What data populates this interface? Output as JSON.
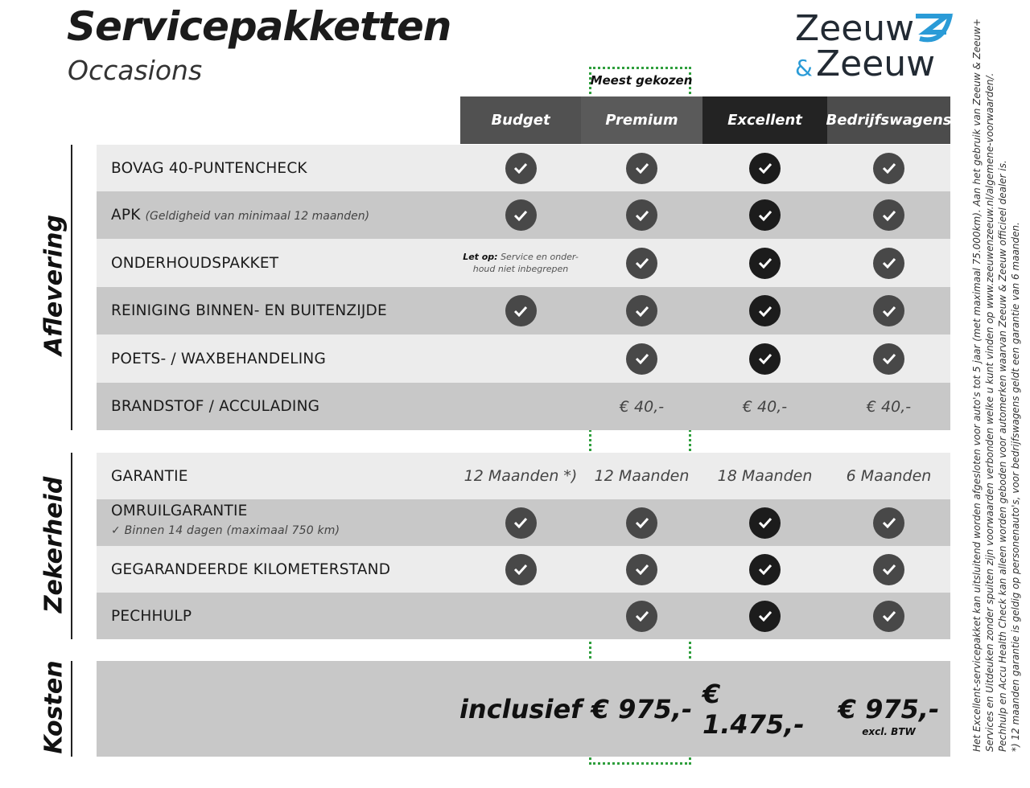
{
  "title": "Servicepakketten",
  "subtitle": "Occasions",
  "logo": {
    "text": "Zeeuw & Zeeuw",
    "brand_color": "#2a9bd7",
    "text_color": "#222a33"
  },
  "most_chosen": "Meest gekozen",
  "highlight_color": "#2e9e3c",
  "columns": [
    {
      "label": "Budget",
      "bg": "#515151"
    },
    {
      "label": "Premium",
      "bg": "#5a5a5a"
    },
    {
      "label": "Excellent",
      "bg": "#232323"
    },
    {
      "label": "Bedrijfswagens",
      "bg": "#4c4c4c"
    }
  ],
  "sections": {
    "aflevering": "Aflevering",
    "zekerheid": "Zekerheid",
    "kosten": "Kosten"
  },
  "aflevering_rows": [
    {
      "label": "BOVAG 40-PUNTENCHECK",
      "cells": [
        "check",
        "check",
        "check",
        "check"
      ]
    },
    {
      "label": "APK",
      "sub": "(Geldigheid van minimaal 12 maanden)",
      "cells": [
        "check",
        "check",
        "check",
        "check"
      ]
    },
    {
      "label": "ONDERHOUDSPAKKET",
      "cells": [
        "note",
        "check",
        "check",
        "check"
      ]
    },
    {
      "label": "REINIGING BINNEN- EN BUITENZIJDE",
      "cells": [
        "check",
        "check",
        "check",
        "check"
      ]
    },
    {
      "label": "POETS- / WAXBEHANDELING",
      "cells": [
        "",
        "check",
        "check",
        "check"
      ]
    },
    {
      "label": "BRANDSTOF / ACCULADING",
      "cells": [
        "",
        "€ 40,-",
        "€ 40,-",
        "€ 40,-"
      ]
    }
  ],
  "note": {
    "bold": "Let op:",
    "text": "Service en onder-",
    "text2": "houd niet inbegrepen"
  },
  "zekerheid_rows": [
    {
      "label": "GARANTIE",
      "cells": [
        "12 Maanden *)",
        "12 Maanden",
        "18 Maanden",
        "6 Maanden"
      ]
    },
    {
      "label": "OMRUILGARANTIE",
      "sub2": "Binnen 14 dagen (maximaal 750 km)",
      "cells": [
        "check",
        "check",
        "check",
        "check"
      ]
    },
    {
      "label": "GEGARANDEERDE KILOMETERSTAND",
      "cells": [
        "check",
        "check",
        "check",
        "check"
      ]
    },
    {
      "label": "PECHHULP",
      "cells": [
        "",
        "check",
        "check",
        "check"
      ]
    }
  ],
  "kosten": {
    "prices": [
      "inclusief",
      "€ 975,-",
      "€ 1.475,-",
      "€ 975,-"
    ],
    "excl": "excl. BTW"
  },
  "footnotes": [
    "Het Excellent-servicepakket kan uitsluitend worden afgesloten voor auto's tot 5 jaar (met maximaal 75.000km). Aan het gebruik van Zeeuw & Zeeuw+",
    "Services en Uitdeuken zonder spuiten zijn voorwaarden verbonden welke u kunt vinden op www.zeeuwenzeeuw.nl/algemene-voorwaarden/.",
    "Pechhulp en Accu Health Check kan alleen worden geboden voor automerken waarvan Zeeuw & Zeeuw officieel dealer is.",
    "*) 12 maanden garantie is geldig op personenauto's, voor bedrijfswagens geldt een garantie van 6 maanden."
  ]
}
